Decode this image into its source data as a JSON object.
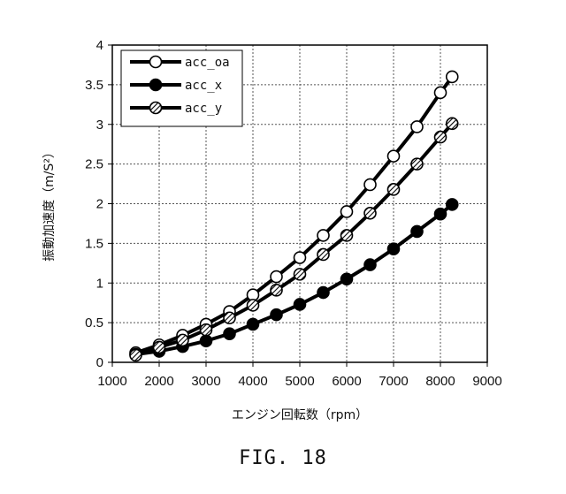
{
  "chart_data": {
    "type": "line",
    "xlabel": "エンジン回転数（rpm）",
    "ylabel": "振動加速度（m/S²）",
    "xlim": [
      1000,
      9000
    ],
    "ylim": [
      0,
      4
    ],
    "x_ticks": [
      "1000",
      "2000",
      "3000",
      "4000",
      "5000",
      "6000",
      "7000",
      "8000",
      "9000"
    ],
    "y_ticks": [
      "0",
      "0.5",
      "1",
      "1.5",
      "2",
      "2.5",
      "3",
      "3.5",
      "4"
    ],
    "grid": true,
    "legend_position": "top-left",
    "x": [
      1500,
      2000,
      2500,
      3000,
      3500,
      4000,
      4500,
      5000,
      5500,
      6000,
      6500,
      7000,
      7500,
      8000,
      8250
    ],
    "series": [
      {
        "name": "acc_oa",
        "marker": "open-circle",
        "values": [
          0.12,
          0.22,
          0.34,
          0.48,
          0.64,
          0.85,
          1.08,
          1.32,
          1.6,
          1.9,
          2.24,
          2.6,
          2.97,
          3.4,
          3.6
        ]
      },
      {
        "name": "acc_x",
        "marker": "filled-circle",
        "values": [
          0.1,
          0.14,
          0.2,
          0.27,
          0.36,
          0.48,
          0.6,
          0.73,
          0.88,
          1.05,
          1.23,
          1.43,
          1.65,
          1.87,
          1.99
        ]
      },
      {
        "name": "acc_y",
        "marker": "hatched-circle",
        "values": [
          0.09,
          0.19,
          0.28,
          0.41,
          0.56,
          0.72,
          0.91,
          1.11,
          1.36,
          1.6,
          1.88,
          2.18,
          2.5,
          2.84,
          3.01
        ]
      }
    ]
  },
  "caption": "FIG. 18",
  "colors": {
    "line": "#000000",
    "marker_fill_open": "#ffffff",
    "grid": "#555555"
  }
}
